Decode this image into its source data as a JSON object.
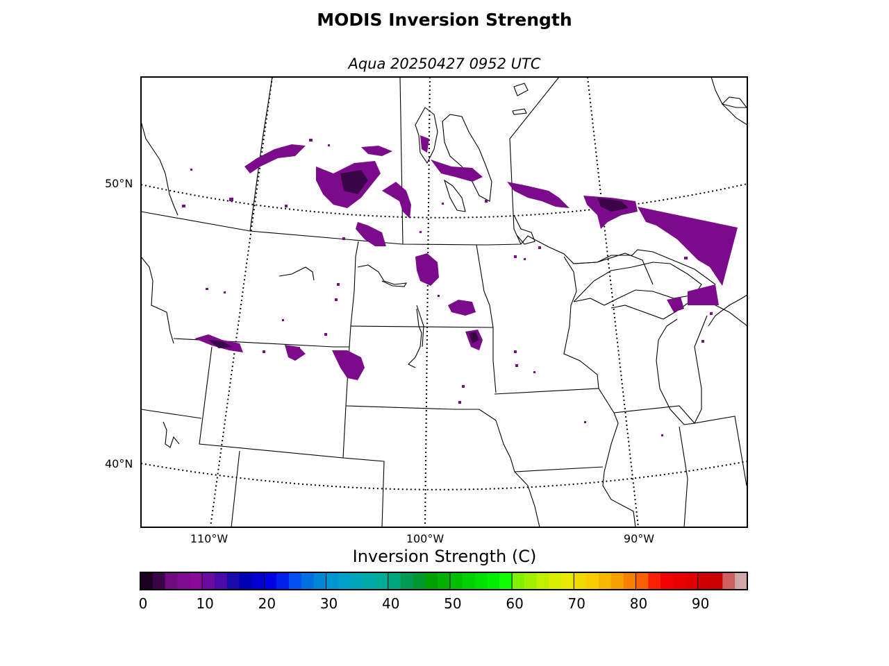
{
  "title": "MODIS Inversion Strength",
  "subtitle": "Aqua 20250427 0952 UTC",
  "map": {
    "lat_labels": [
      "50°N",
      "40°N"
    ],
    "lon_labels": [
      "110°W",
      "100°W",
      "90°W"
    ],
    "data_color": "#7b0b8b",
    "data_color_dark": "#3a0548"
  },
  "colorbar": {
    "title": "Inversion Strength (C)",
    "min": 0,
    "max": 98,
    "ticks": [
      "0",
      "10",
      "20",
      "30",
      "40",
      "50",
      "60",
      "70",
      "80",
      "90"
    ],
    "colors": [
      "#1b0020",
      "#3a0548",
      "#700a80",
      "#7e0a90",
      "#8a0a99",
      "#6a0aa0",
      "#4a0aaa",
      "#1a0aaa",
      "#0000b5",
      "#0000d0",
      "#0000e5",
      "#0020ee",
      "#0050ee",
      "#0070e0",
      "#0085d8",
      "#0095d0",
      "#00a0c8",
      "#00a6b8",
      "#00aaa8",
      "#00ac98",
      "#00a880",
      "#009a55",
      "#009930",
      "#00a000",
      "#00b000",
      "#00c000",
      "#00d000",
      "#00e000",
      "#00ee00",
      "#10ff00",
      "#80f000",
      "#a0f000",
      "#c0f000",
      "#d8f000",
      "#e8e800",
      "#f0d800",
      "#f8cc00",
      "#f8b800",
      "#f8a000",
      "#f88000",
      "#f86000",
      "#f82000",
      "#f00000",
      "#e80000",
      "#e00000",
      "#d00000",
      "#c80000",
      "#d06060",
      "#d0a8a8"
    ]
  }
}
